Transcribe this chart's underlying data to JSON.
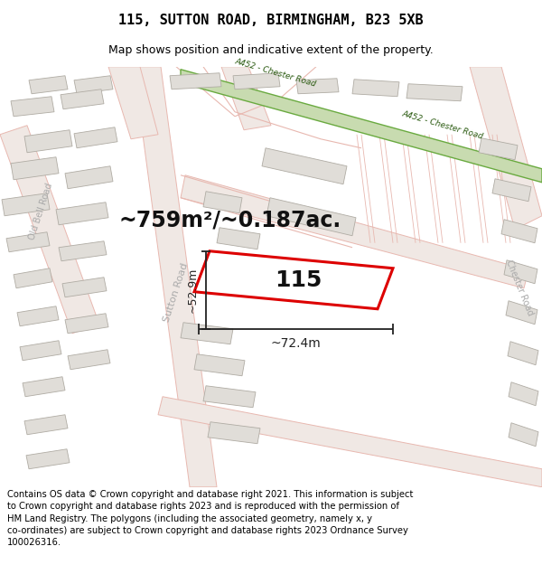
{
  "title": "115, SUTTON ROAD, BIRMINGHAM, B23 5XB",
  "subtitle": "Map shows position and indicative extent of the property.",
  "footer": "Contains OS data © Crown copyright and database right 2021. This information is subject\nto Crown copyright and database rights 2023 and is reproduced with the permission of\nHM Land Registry. The polygons (including the associated geometry, namely x, y\nco-ordinates) are subject to Crown copyright and database rights 2023 Ordnance Survey\n100026316.",
  "area_label": "~759m²/~0.187ac.",
  "number_label": "115",
  "width_label": "~72.4m",
  "height_label": "~52.9m",
  "road_label_sutton": "Sutton Road",
  "road_label_oldbell": "Old Bell Road",
  "road_label_a452_top": "A452 - Chester Road",
  "road_label_a452_bot": "A452 - Chester Road",
  "road_label_chester": "Chester Road",
  "map_bg": "#f9f8f6",
  "road_fill": "#f0e8e4",
  "road_edge": "#e8b8b0",
  "green_fill": "#c8dbb0",
  "green_edge": "#6aaa40",
  "property_color": "#dd0000",
  "building_fill": "#e0ddd8",
  "building_edge": "#b0aca4",
  "dim_color": "#222222",
  "label_color": "#aaaaaa",
  "title_fontsize": 11,
  "subtitle_fontsize": 9,
  "footer_fontsize": 7.2,
  "area_fontsize": 17,
  "number_fontsize": 18
}
